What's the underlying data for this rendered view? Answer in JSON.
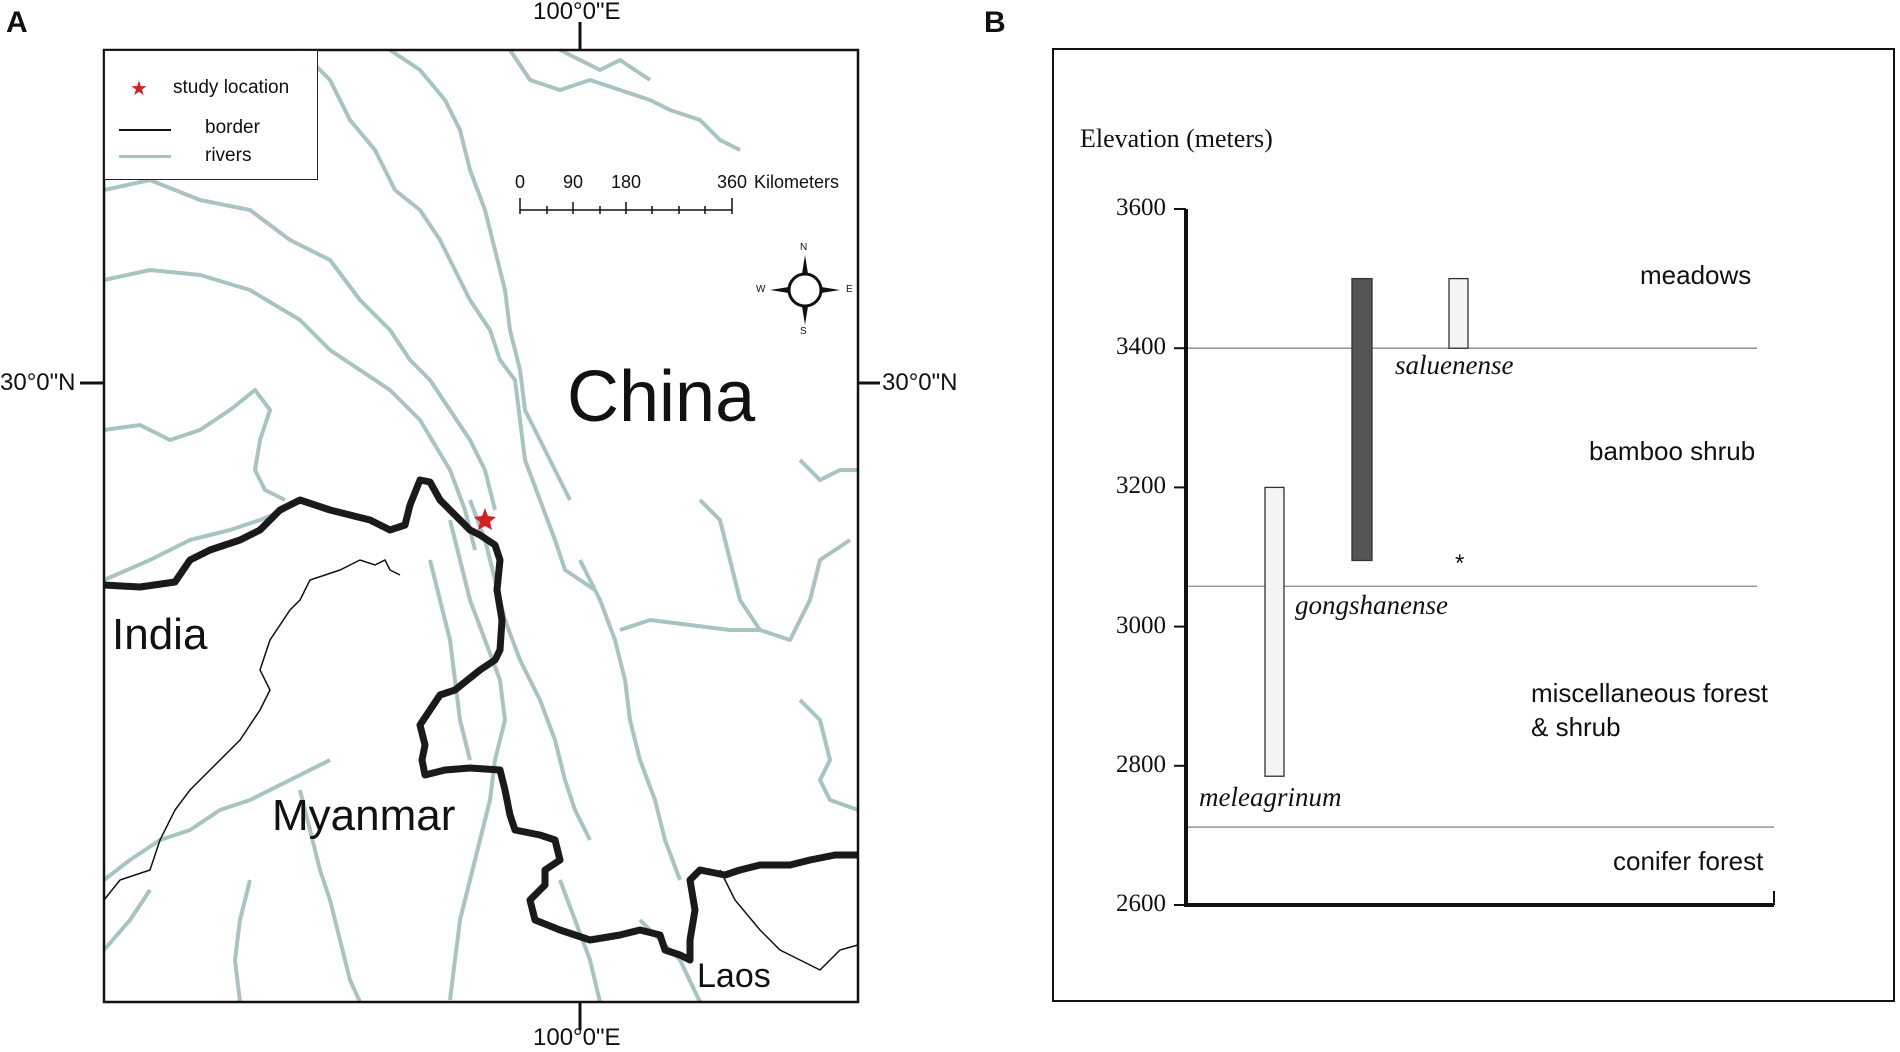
{
  "panel_a": {
    "letter": "A",
    "coordinates": {
      "top_longitude": "100°0\"E",
      "bottom_longitude": "100°0\"E",
      "left_latitude": "30°0\"N",
      "right_latitude": "30°0\"N"
    },
    "legend": {
      "items": [
        {
          "label": "study location",
          "symbol": "red-star-icon",
          "color": "#d42020"
        },
        {
          "label": "border",
          "symbol": "black-line",
          "color": "#111111"
        },
        {
          "label": "rivers",
          "symbol": "grey-line",
          "color": "#a9c3c3"
        }
      ]
    },
    "scale_bar": {
      "ticks": [
        "0",
        "90",
        "180",
        "360"
      ],
      "unit": "Kilometers"
    },
    "compass": {
      "n": "N",
      "s": "S",
      "e": "E",
      "w": "W"
    },
    "labels": {
      "china": "China",
      "india": "India",
      "myanmar": "Myanmar",
      "laos": "Laos"
    }
  },
  "panel_b": {
    "letter": "B",
    "zones": {
      "meadows": "meadows",
      "bamboo": "bamboo shrub",
      "misc_line1": "miscellaneous forest",
      "misc_line2": "& shrub",
      "conifer": "conifer forest"
    },
    "species": {
      "saluenense": "saluenense",
      "gongshanense": "gongshanense",
      "meleagrinum": "meleagrinum"
    },
    "asterisk": "*",
    "chart_data": {
      "type": "bar",
      "ylabel": "Elevation (meters)",
      "ylim": [
        2600,
        3600
      ],
      "yticks": [
        "3600",
        "3400",
        "3200",
        "3000",
        "2800",
        "2600"
      ],
      "zone_boundaries": [
        3400,
        3058,
        2712
      ],
      "series": [
        {
          "name": "meleagrinum",
          "low": 2785,
          "high": 3200,
          "fill": "#f4f4f4"
        },
        {
          "name": "gongshanense",
          "low": 3095,
          "high": 3500,
          "fill": "#555555"
        },
        {
          "name": "saluenense",
          "low": 3400,
          "high": 3500,
          "fill": "#f4f4f4"
        }
      ]
    }
  }
}
